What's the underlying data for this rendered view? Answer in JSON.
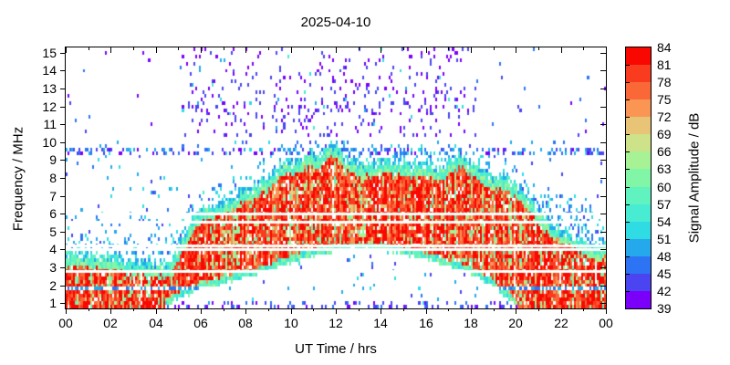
{
  "chart_data": {
    "type": "heatmap",
    "title": "2025-04-10",
    "xlabel": "UT Time / hrs",
    "ylabel": "Frequency / MHz",
    "colorbar_label": "Signal Amplitude / dB",
    "x_range_hours": [
      0,
      24
    ],
    "y_range_mhz": [
      0.7,
      15.3
    ],
    "amplitude_range_db": [
      39,
      84
    ],
    "amplitude_step_db": 3,
    "x_ticks": {
      "hours": [
        0,
        2,
        4,
        6,
        8,
        10,
        12,
        14,
        16,
        18,
        20,
        22,
        24
      ],
      "labels": [
        "00",
        "02",
        "04",
        "06",
        "08",
        "10",
        "12",
        "14",
        "16",
        "18",
        "20",
        "22",
        "00"
      ]
    },
    "x_minor_tick_hours": [
      1,
      3,
      5,
      7,
      9,
      11,
      13,
      15,
      17,
      19,
      21,
      23
    ],
    "y_ticks_mhz": [
      1,
      2,
      3,
      4,
      5,
      6,
      7,
      8,
      9,
      10,
      11,
      12,
      13,
      14,
      15
    ],
    "colorbar_ticks_db": [
      39,
      42,
      45,
      48,
      51,
      54,
      57,
      60,
      63,
      66,
      69,
      72,
      75,
      78,
      81,
      84
    ],
    "colormap": [
      {
        "min_db": 39,
        "max_db": 42,
        "color": "#7B00FA"
      },
      {
        "min_db": 42,
        "max_db": 45,
        "color": "#4A45F0"
      },
      {
        "min_db": 45,
        "max_db": 48,
        "color": "#2C74F4"
      },
      {
        "min_db": 48,
        "max_db": 51,
        "color": "#25A9EC"
      },
      {
        "min_db": 51,
        "max_db": 54,
        "color": "#30DCE4"
      },
      {
        "min_db": 54,
        "max_db": 57,
        "color": "#47ECD3"
      },
      {
        "min_db": 57,
        "max_db": 60,
        "color": "#60F3BF"
      },
      {
        "min_db": 60,
        "max_db": 63,
        "color": "#80F6A6"
      },
      {
        "min_db": 63,
        "max_db": 66,
        "color": "#A7F295"
      },
      {
        "min_db": 66,
        "max_db": 69,
        "color": "#CDE289"
      },
      {
        "min_db": 69,
        "max_db": 72,
        "color": "#E8C476"
      },
      {
        "min_db": 72,
        "max_db": 75,
        "color": "#FA9554"
      },
      {
        "min_db": 75,
        "max_db": 78,
        "color": "#FA6838"
      },
      {
        "min_db": 78,
        "max_db": 81,
        "color": "#F93B20"
      },
      {
        "min_db": 81,
        "max_db": 84,
        "color": "#F80800"
      }
    ],
    "grid": {
      "nx": 288,
      "ny": 73,
      "seed": 7
    },
    "features": {
      "echo_top_envelope_mhz": [
        [
          0,
          3.6
        ],
        [
          0.5,
          3.5
        ],
        [
          1,
          3.45
        ],
        [
          1.5,
          3.4
        ],
        [
          2,
          3.3
        ],
        [
          2.5,
          3.2
        ],
        [
          3,
          3.1
        ],
        [
          3.5,
          3.0
        ],
        [
          4,
          2.95
        ],
        [
          4.5,
          2.9
        ],
        [
          4.8,
          3.3
        ],
        [
          5.1,
          4.0
        ],
        [
          5.5,
          5.2
        ],
        [
          5.9,
          5.9
        ],
        [
          6.3,
          6.2
        ],
        [
          7,
          6.3
        ],
        [
          7.5,
          6.7
        ],
        [
          8,
          7.1
        ],
        [
          8.6,
          7.5
        ],
        [
          9,
          7.8
        ],
        [
          9.4,
          8.3
        ],
        [
          9.8,
          8.8
        ],
        [
          10.1,
          8.6
        ],
        [
          10.5,
          8.9
        ],
        [
          10.8,
          9.2
        ],
        [
          11.1,
          8.9
        ],
        [
          11.5,
          9.3
        ],
        [
          11.8,
          9.6
        ],
        [
          12.1,
          9.4
        ],
        [
          12.4,
          8.9
        ],
        [
          12.8,
          8.6
        ],
        [
          13.3,
          8.5
        ],
        [
          14,
          8.7
        ],
        [
          14.5,
          8.8
        ],
        [
          15,
          8.5
        ],
        [
          15.5,
          8.4
        ],
        [
          16,
          8.5
        ],
        [
          16.5,
          8.3
        ],
        [
          17,
          8.5
        ],
        [
          17.5,
          9.1
        ],
        [
          17.8,
          8.8
        ],
        [
          18.2,
          8.4
        ],
        [
          18.6,
          8.1
        ],
        [
          19,
          7.9
        ],
        [
          19.6,
          7.6
        ],
        [
          20,
          7.4
        ],
        [
          20.6,
          6.5
        ],
        [
          21.2,
          5.6
        ],
        [
          22,
          4.8
        ],
        [
          22.5,
          4.45
        ],
        [
          23.2,
          4.0
        ],
        [
          23.7,
          3.9
        ],
        [
          24,
          4.1
        ]
      ],
      "absorption_cutoff_mhz": [
        [
          0,
          0.62
        ],
        [
          4.2,
          0.62
        ],
        [
          4.6,
          1.0
        ],
        [
          5,
          1.2
        ],
        [
          5.5,
          1.5
        ],
        [
          6,
          1.75
        ],
        [
          7,
          2.1
        ],
        [
          8,
          2.4
        ],
        [
          9,
          2.8
        ],
        [
          10,
          3.25
        ],
        [
          11,
          3.6
        ],
        [
          12,
          3.85
        ],
        [
          12.7,
          3.95
        ],
        [
          13.5,
          3.95
        ],
        [
          14,
          3.9
        ],
        [
          15,
          3.7
        ],
        [
          16,
          3.45
        ],
        [
          17,
          3.1
        ],
        [
          18,
          2.6
        ],
        [
          18.8,
          2.1
        ],
        [
          19.4,
          1.5
        ],
        [
          19.9,
          1.0
        ],
        [
          20.3,
          0.62
        ],
        [
          24,
          0.62
        ]
      ],
      "interference_gap_lines_mhz": [
        6.0,
        5.55,
        4.2,
        4.0,
        2.78
      ],
      "dotted_line_mhz": 1.85,
      "echo_core_amp_db": [
        69,
        84
      ],
      "echo_fringe_amp_db": [
        52,
        66
      ],
      "band_9_5mhz": {
        "f_low": 9.3,
        "f_high": 9.72,
        "density": 0.3,
        "amp_db": [
          39,
          52
        ]
      },
      "hf_noise_region": {
        "f_low": 10.4,
        "f_high": 15.3,
        "t_start": 5.2,
        "t_end": 18.25,
        "density": 0.095,
        "dense_band_mhz": [
          11.55,
          12.45
        ],
        "amp_db": [
          39,
          45
        ]
      },
      "dusk_scatter": {
        "t_start": 19.5,
        "t_end": 23.4,
        "density": 0.2,
        "amp_db": [
          45,
          55
        ]
      },
      "night_scatter": {
        "f_max": 6.3,
        "density": 0.07,
        "amp_db": [
          44,
          54
        ]
      },
      "bottom_dots": {
        "f_max": 1.15,
        "density": 0.2,
        "amp_db": [
          39,
          48
        ]
      },
      "background_sparse_density": 0.025
    }
  }
}
